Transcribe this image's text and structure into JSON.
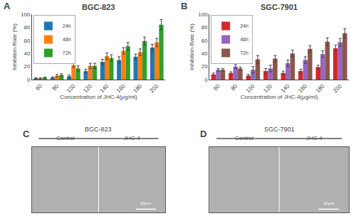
{
  "chart_data": [
    {
      "type": "bar",
      "title": "BGC-823",
      "annotations": [
        "A"
      ],
      "xlabel": "Concentration of JHC-4(μg/ml)",
      "ylabel": "Inhibition Rate (%)",
      "categories": [
        "60",
        "80",
        "100",
        "120",
        "140",
        "160",
        "180",
        "200"
      ],
      "series": [
        {
          "name": "24h",
          "values": [
            2,
            3,
            5,
            13,
            27,
            30,
            35,
            49
          ],
          "errors": [
            1,
            1,
            2,
            3,
            4,
            5,
            4,
            5
          ]
        },
        {
          "name": "48h",
          "values": [
            2,
            6,
            22,
            21,
            36,
            44,
            42,
            57
          ],
          "errors": [
            1,
            2,
            3,
            4,
            5,
            5,
            5,
            6
          ]
        },
        {
          "name": "72h",
          "values": [
            3,
            7,
            17,
            21,
            33,
            51,
            59,
            84
          ],
          "errors": [
            1,
            2,
            4,
            4,
            5,
            6,
            6,
            8
          ]
        }
      ],
      "ylim": [
        0,
        100
      ],
      "yticks": [
        0,
        20,
        40,
        60,
        80,
        100
      ],
      "grid": false,
      "legend": "upper left"
    },
    {
      "type": "bar",
      "title": "SGC-7901",
      "annotations": [
        "B"
      ],
      "xlabel": "Concentration of JHC-4(μg/ml)",
      "ylabel": "Inhibition Rate (%)",
      "categories": [
        "60",
        "80",
        "100",
        "120",
        "140",
        "160",
        "180",
        "200"
      ],
      "series": [
        {
          "name": "24h",
          "values": [
            8,
            10,
            6,
            13,
            10,
            13,
            19,
            48
          ],
          "errors": [
            2,
            2,
            2,
            4,
            3,
            3,
            3,
            5
          ]
        },
        {
          "name": "48h",
          "values": [
            15,
            20,
            15,
            17,
            25,
            30,
            39,
            57
          ],
          "errors": [
            2,
            3,
            5,
            5,
            5,
            5,
            5,
            6
          ]
        },
        {
          "name": "72h",
          "values": [
            15,
            17,
            31,
            32,
            40,
            47,
            58,
            71
          ],
          "errors": [
            2,
            2,
            6,
            5,
            5,
            5,
            6,
            7
          ]
        }
      ],
      "ylim": [
        0,
        100
      ],
      "yticks": [
        0,
        20,
        40,
        60,
        80,
        100
      ],
      "grid": false,
      "legend": "upper left"
    },
    {
      "type": "image",
      "title": "BGC-823",
      "annotations": [
        "C",
        "Control",
        "JHC-4",
        "10μm"
      ],
      "color": "#b0b0b0",
      "tick_labels": false
    },
    {
      "type": "image",
      "title": "SGC-7901",
      "annotations": [
        "D",
        "Control",
        "JHC-4",
        "10μm"
      ],
      "color": "#b0b0b0",
      "tick_labels": false
    }
  ]
}
